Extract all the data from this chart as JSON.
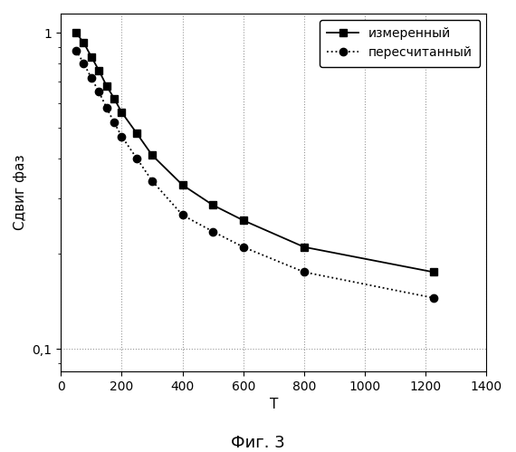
{
  "series1_label": "измеренный",
  "series2_label": "пересчитанный",
  "series1_x": [
    50,
    75,
    100,
    125,
    150,
    175,
    200,
    250,
    300,
    400,
    500,
    600,
    800,
    1225
  ],
  "series1_y": [
    1.0,
    0.93,
    0.84,
    0.76,
    0.68,
    0.62,
    0.56,
    0.48,
    0.41,
    0.33,
    0.285,
    0.255,
    0.21,
    0.175
  ],
  "series2_x": [
    50,
    75,
    100,
    125,
    150,
    175,
    200,
    250,
    300,
    400,
    500,
    600,
    800,
    1225
  ],
  "series2_y": [
    0.88,
    0.8,
    0.72,
    0.65,
    0.58,
    0.52,
    0.47,
    0.4,
    0.34,
    0.265,
    0.235,
    0.21,
    0.175,
    0.145
  ],
  "xlabel": "T",
  "ylabel": "Сдвиг фаз",
  "fig_label": "Фиг. 3",
  "xlim": [
    0,
    1400
  ],
  "ylim_log": [
    0.085,
    1.15
  ],
  "xticks": [
    0,
    200,
    400,
    600,
    800,
    1000,
    1200,
    1400
  ],
  "yticks_log": [
    0.1,
    1
  ],
  "ytick_labels": [
    "0,1",
    "1"
  ],
  "grid_color": "#999999",
  "line_color": "#000000",
  "marker1": "s",
  "marker2": "o",
  "marker_size": 6,
  "line_width": 1.3,
  "bg_color": "#ffffff",
  "ref_line_y": 0.1,
  "axis_fontsize": 11,
  "legend_fontsize": 10,
  "fig_label_fontsize": 13
}
